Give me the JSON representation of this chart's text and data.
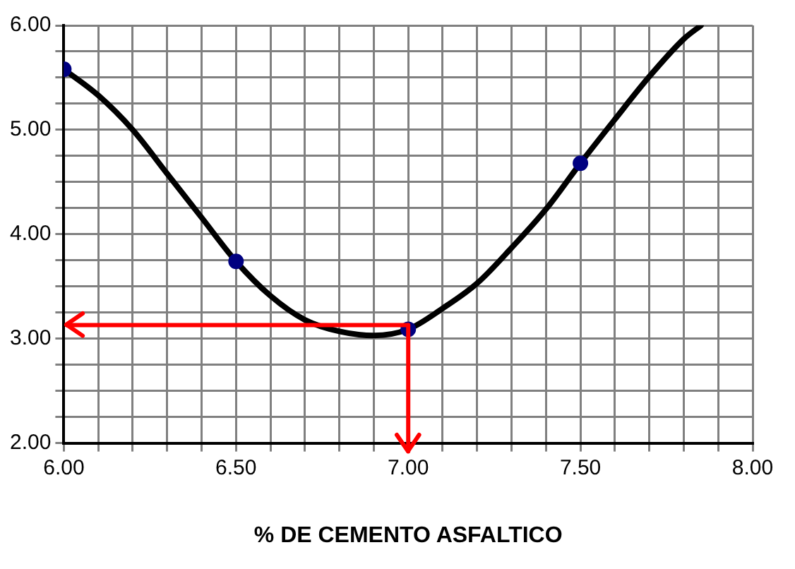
{
  "chart_data": {
    "type": "line",
    "xlabel": "% DE CEMENTO ASFALTICO",
    "series": [
      {
        "color": "#000000",
        "marker": "none",
        "x": [
          6.0,
          6.1,
          6.2,
          6.3,
          6.4,
          6.5,
          6.6,
          6.7,
          6.8,
          6.9,
          7.0,
          7.1,
          7.2,
          7.3,
          7.4,
          7.5,
          7.6,
          7.7,
          7.8,
          7.85
        ],
        "values": [
          5.58,
          5.33,
          5.0,
          4.58,
          4.16,
          3.74,
          3.41,
          3.18,
          3.07,
          3.03,
          3.09,
          3.29,
          3.53,
          3.87,
          4.24,
          4.68,
          5.1,
          5.51,
          5.87,
          6.0
        ]
      },
      {
        "type": "scatter",
        "color": "#000080",
        "marker": "circle",
        "x": [
          6.0,
          6.5,
          7.0,
          7.5
        ],
        "values": [
          5.58,
          3.74,
          3.09,
          4.68
        ]
      }
    ],
    "xlim": [
      6,
      8
    ],
    "ylim": [
      2,
      6
    ],
    "xticks": [
      {
        "value": 6,
        "label": "6.00"
      },
      {
        "value": 6.1,
        "label": null
      },
      {
        "value": 6.2,
        "label": null
      },
      {
        "value": 6.3,
        "label": null
      },
      {
        "value": 6.4,
        "label": null
      },
      {
        "value": 6.5,
        "label": "6.50"
      },
      {
        "value": 6.6,
        "label": null
      },
      {
        "value": 6.7,
        "label": null
      },
      {
        "value": 6.8,
        "label": null
      },
      {
        "value": 6.9,
        "label": null
      },
      {
        "value": 7,
        "label": "7.00"
      },
      {
        "value": 7.1,
        "label": null
      },
      {
        "value": 7.2,
        "label": null
      },
      {
        "value": 7.3,
        "label": null
      },
      {
        "value": 7.4,
        "label": null
      },
      {
        "value": 7.5,
        "label": "7.50"
      },
      {
        "value": 7.6,
        "label": null
      },
      {
        "value": 7.7,
        "label": null
      },
      {
        "value": 7.8,
        "label": null
      },
      {
        "value": 7.9,
        "label": null
      },
      {
        "value": 8,
        "label": "8.00"
      }
    ],
    "yticks": [
      {
        "value": 2,
        "label": "2.00"
      },
      {
        "value": 2.25,
        "label": null
      },
      {
        "value": 2.5,
        "label": null
      },
      {
        "value": 2.75,
        "label": null
      },
      {
        "value": 3,
        "label": "3.00"
      },
      {
        "value": 3.25,
        "label": null
      },
      {
        "value": 3.5,
        "label": null
      },
      {
        "value": 3.75,
        "label": null
      },
      {
        "value": 4,
        "label": "4.00"
      },
      {
        "value": 4.25,
        "label": null
      },
      {
        "value": 4.5,
        "label": null
      },
      {
        "value": 4.75,
        "label": null
      },
      {
        "value": 5,
        "label": "5.00"
      },
      {
        "value": 5.25,
        "label": null
      },
      {
        "value": 5.5,
        "label": null
      },
      {
        "value": 5.75,
        "label": null
      },
      {
        "value": 6,
        "label": "6.00"
      }
    ],
    "grid": true,
    "legend": false,
    "ref_lines": [
      {
        "axis": "y",
        "value": 3.13,
        "color": "#ff0000"
      },
      {
        "axis": "x",
        "value": 7.0,
        "color": "#ff0000"
      }
    ]
  }
}
